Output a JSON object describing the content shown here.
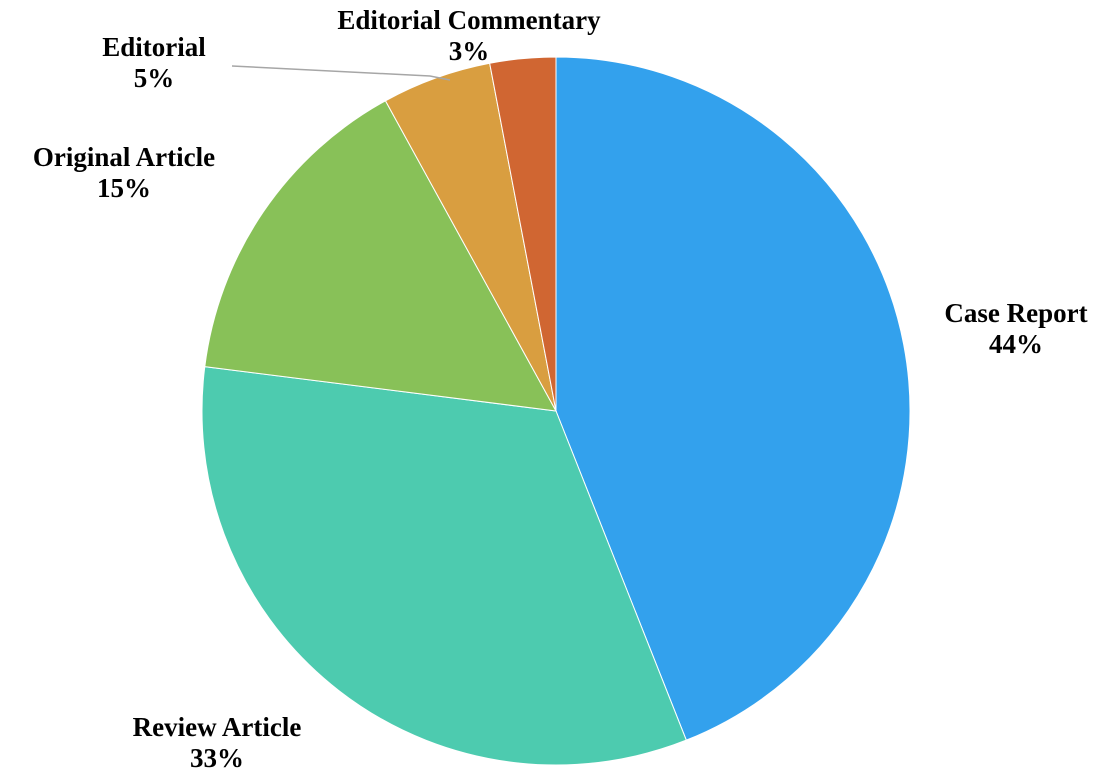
{
  "chart_data": {
    "type": "pie",
    "title": "",
    "start_angle_deg": 0,
    "direction": "clockwise",
    "slices": [
      {
        "label": "Case Report",
        "percent_label": "44%",
        "value": 44,
        "color": "#33A1ED"
      },
      {
        "label": "Review Article",
        "percent_label": "33%",
        "value": 33,
        "color": "#4DCBAF"
      },
      {
        "label": "Original Article",
        "percent_label": "15%",
        "value": 15,
        "color": "#88C158"
      },
      {
        "label": "Editorial",
        "percent_label": "5%",
        "value": 5,
        "color": "#D99E40"
      },
      {
        "label": "Editorial Commentary",
        "percent_label": "3%",
        "value": 3,
        "color": "#D06632"
      }
    ]
  }
}
